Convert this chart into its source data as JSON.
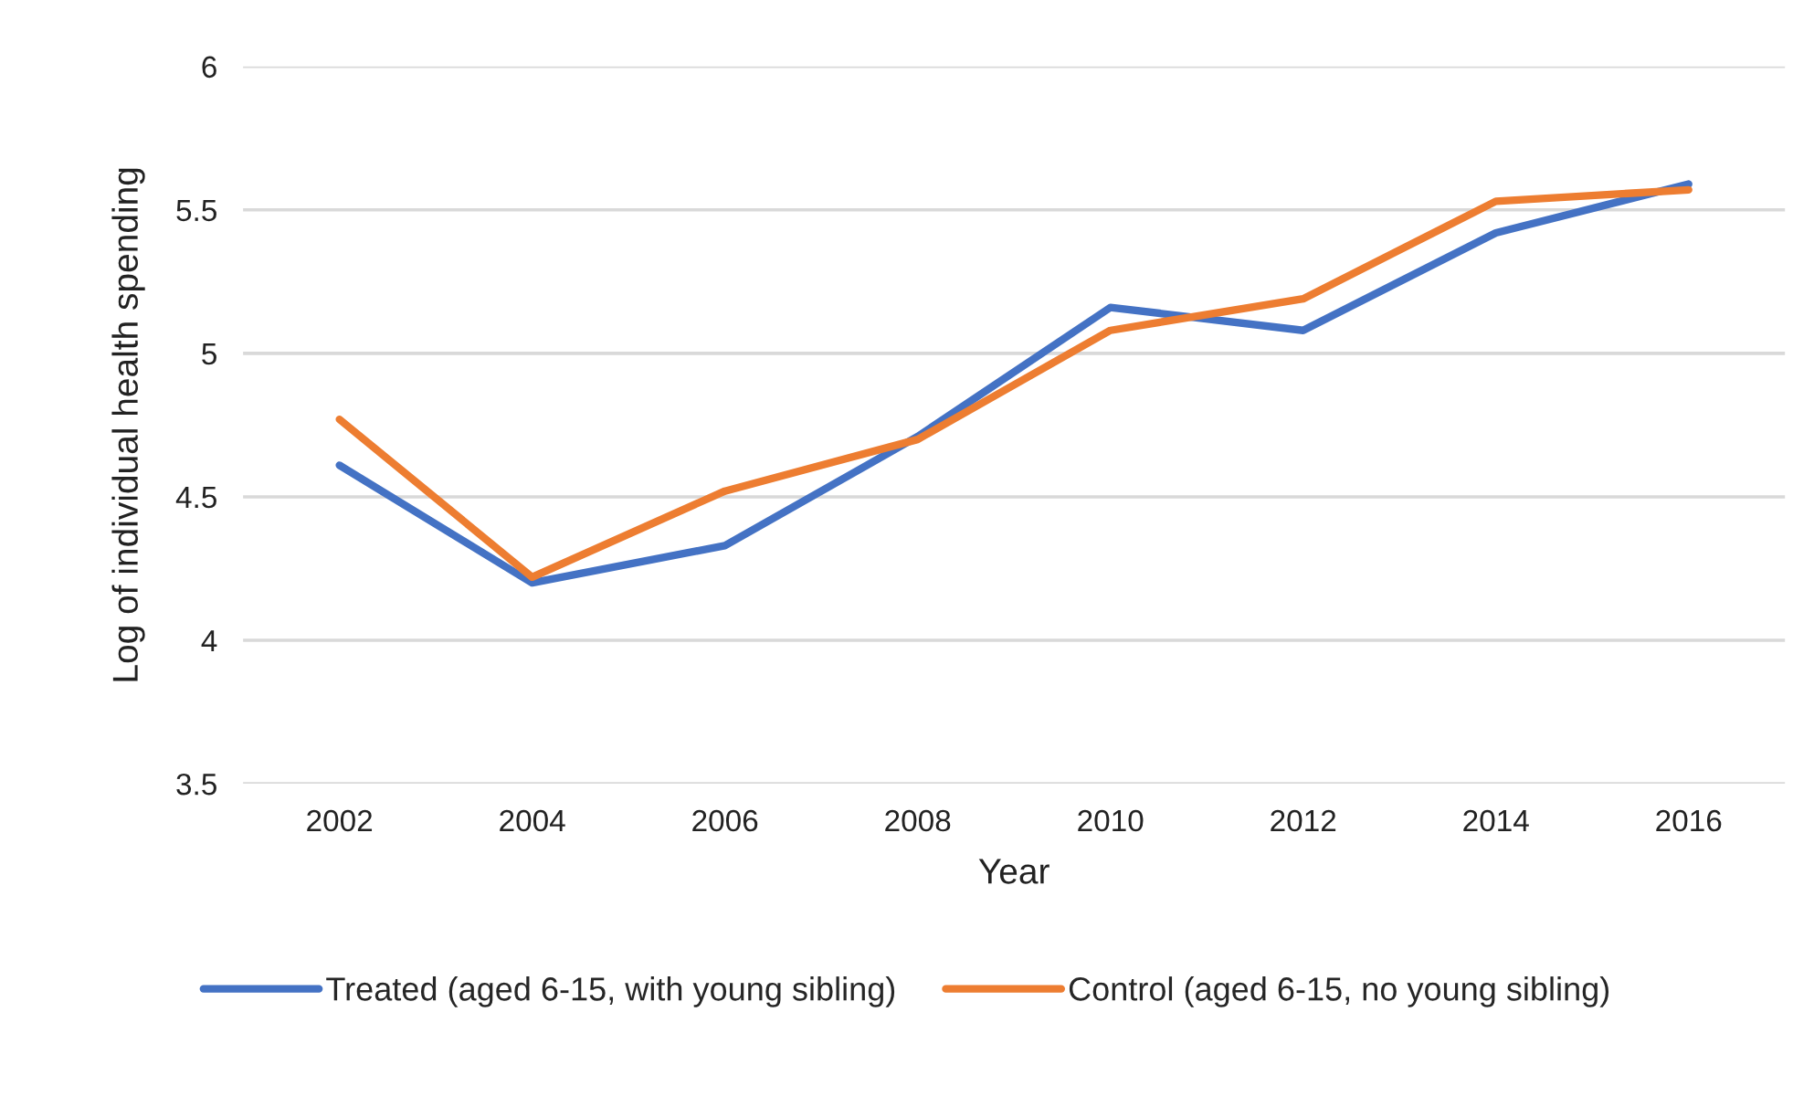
{
  "chart_data": {
    "type": "line",
    "xlabel": "Year",
    "ylabel": "Log of individual health spending",
    "categories": [
      "2002",
      "2004",
      "2006",
      "2008",
      "2010",
      "2012",
      "2014",
      "2016"
    ],
    "series": [
      {
        "name": "Treated (aged 6-15, with young sibling)",
        "color": "#4472c4",
        "values": [
          4.61,
          4.2,
          4.33,
          4.71,
          5.16,
          5.08,
          5.42,
          5.59
        ]
      },
      {
        "name": "Control (aged 6-15, no young sibling)",
        "color": "#ed7d31",
        "values": [
          4.77,
          4.22,
          4.52,
          4.7,
          5.08,
          5.19,
          5.53,
          5.57
        ]
      }
    ],
    "ylim": [
      3.5,
      6
    ],
    "yticks": [
      3.5,
      4,
      4.5,
      5,
      5.5,
      6
    ],
    "grid": "y",
    "legend": "bottom",
    "marker": "none",
    "line_style": "solid"
  }
}
